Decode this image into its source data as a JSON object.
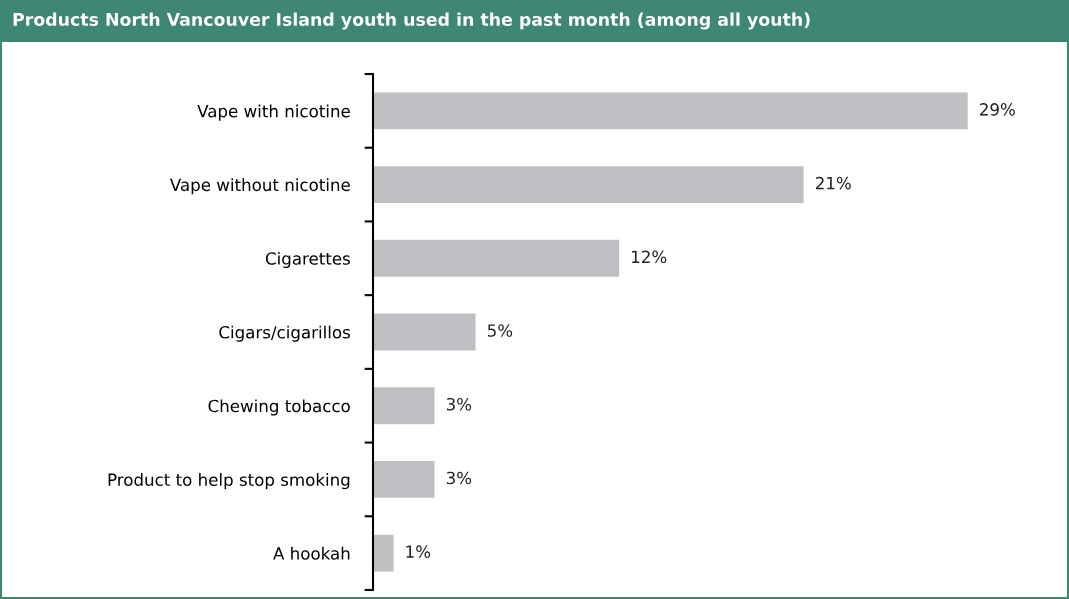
{
  "chart_data": {
    "type": "bar",
    "orientation": "horizontal",
    "title": "Products North Vancouver Island youth used in the past month (among all youth)",
    "categories": [
      "Vape with nicotine",
      "Vape without nicotine",
      "Cigarettes",
      "Cigars/cigarillos",
      "Chewing tobacco",
      "Product to help stop smoking",
      "A hookah"
    ],
    "values": [
      29,
      21,
      12,
      5,
      3,
      3,
      1
    ],
    "value_labels": [
      "29%",
      "21%",
      "12%",
      "5%",
      "3%",
      "3%",
      "1%"
    ],
    "color": "#bfbfc3",
    "tick_labels": "y",
    "grid": false,
    "legend": false
  }
}
